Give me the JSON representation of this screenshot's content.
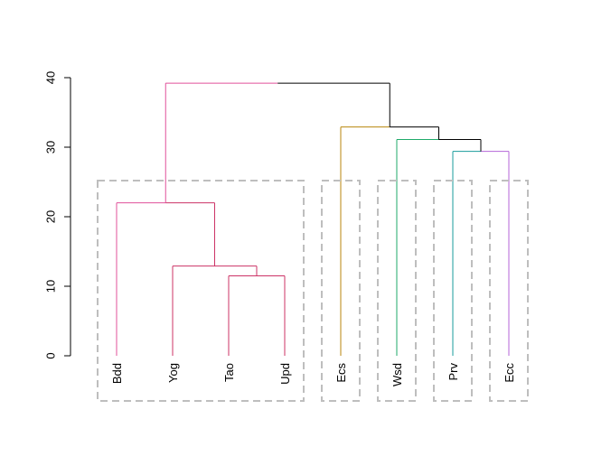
{
  "chart_data": {
    "type": "dendrogram",
    "title": "",
    "xlabel": "",
    "ylabel": "",
    "ylim": [
      0,
      40
    ],
    "y_ticks": [
      0,
      10,
      20,
      30,
      40
    ],
    "y_tick_labels": [
      "0",
      "10",
      "20",
      "30",
      "40"
    ],
    "leaves": [
      "Bdd",
      "Yog",
      "Tao",
      "Upd",
      "Ecs",
      "Wsd",
      "Prv",
      "Ecc"
    ],
    "merges": [
      {
        "id": "m1",
        "left": "Tao",
        "right": "Upd",
        "height": 11.5,
        "color": "#CC3366"
      },
      {
        "id": "m2",
        "left": "Yog",
        "right": "m1",
        "height": 12.9,
        "color": "#CC3366"
      },
      {
        "id": "m3",
        "left": "Bdd",
        "right": "m2",
        "height": 22.0,
        "color": "#E0509A"
      },
      {
        "id": "m4",
        "left": "Prv",
        "right": "Ecc",
        "height": 29.4,
        "color": "#000000"
      },
      {
        "id": "m5",
        "left": "Wsd",
        "right": "m4",
        "height": 31.1,
        "color": "#000000"
      },
      {
        "id": "m6",
        "left": "Ecs",
        "right": "m5",
        "height": 32.9,
        "color": "#000000"
      },
      {
        "id": "m7",
        "left": "m3",
        "right": "m6",
        "height": 39.2,
        "color": "#000000"
      }
    ],
    "leaf_colors": {
      "Bdd": "#E0509A",
      "Yog": "#CC3366",
      "Tao": "#CC3366",
      "Upd": "#CC3366",
      "Ecs": "#B8860B",
      "Wsd": "#1FAA6A",
      "Prv": "#1A9C9C",
      "Ecc": "#B565D8"
    },
    "cluster_colors": [
      "#E0509A",
      "#B8860B",
      "#1FAA6A",
      "#1A9C9C",
      "#B565D8"
    ],
    "clusters": [
      [
        "Bdd",
        "Yog",
        "Tao",
        "Upd"
      ],
      [
        "Ecs"
      ],
      [
        "Wsd"
      ],
      [
        "Prv"
      ],
      [
        "Ecc"
      ]
    ],
    "cluster_box_color": "#BEBEBE",
    "grid": false,
    "legend": "none"
  }
}
